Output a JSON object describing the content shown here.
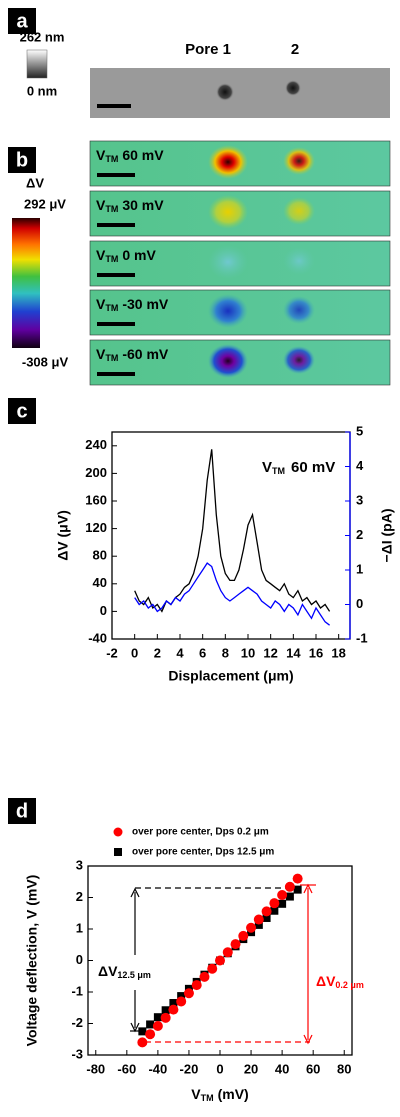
{
  "panels": {
    "a": {
      "label": "a",
      "scale_max": "262 nm",
      "scale_min": "0 nm",
      "pore1": "Pore 1",
      "pore2": "2"
    },
    "b": {
      "label": "b",
      "scale_title": "ΔV",
      "scale_max": "292 μV",
      "scale_min": "-308 μV",
      "maps": [
        {
          "symbol": "V",
          "sub": "TM",
          "text": "60 mV"
        },
        {
          "symbol": "V",
          "sub": "TM",
          "text": "30 mV"
        },
        {
          "symbol": "V",
          "sub": "TM",
          "text": "0 mV"
        },
        {
          "symbol": "V",
          "sub": "TM",
          "text": "-30 mV"
        },
        {
          "symbol": "V",
          "sub": "TM",
          "text": "-60 mV"
        }
      ]
    },
    "c": {
      "label": "c"
    },
    "d": {
      "label": "d"
    }
  },
  "chart_data": [
    {
      "type": "line",
      "annotation": {
        "symbol": "V",
        "sub": "TM",
        "text": "60 mV"
      },
      "xlabel": "Displacement (μm)",
      "ylabel": "ΔV (μV)",
      "y2label": "−ΔI (pA)",
      "x": [
        0,
        0.4,
        0.8,
        1.2,
        1.6,
        2,
        2.4,
        2.8,
        3.2,
        3.6,
        4,
        4.4,
        4.8,
        5.2,
        5.6,
        6,
        6.4,
        6.8,
        7.2,
        7.6,
        8,
        8.4,
        8.8,
        9.2,
        9.6,
        10,
        10.4,
        10.8,
        11.2,
        11.6,
        12,
        12.4,
        12.8,
        13.2,
        13.6,
        14,
        14.4,
        14.8,
        15.2,
        15.6,
        16,
        16.4,
        16.8,
        17.2
      ],
      "series": [
        {
          "color": "#000000",
          "values": [
            30,
            15,
            10,
            20,
            5,
            10,
            0,
            15,
            10,
            20,
            25,
            35,
            40,
            55,
            80,
            120,
            190,
            235,
            140,
            80,
            55,
            45,
            45,
            60,
            90,
            125,
            140,
            100,
            60,
            45,
            40,
            35,
            30,
            40,
            25,
            20,
            30,
            15,
            20,
            10,
            15,
            5,
            10,
            0
          ]
        },
        {
          "color": "#0000ff",
          "axis": "y2",
          "values": [
            0.2,
            0,
            0.1,
            -0.1,
            0,
            -0.2,
            -0.1,
            0.1,
            0,
            0.2,
            0.1,
            0.3,
            0.4,
            0.6,
            0.8,
            1.0,
            1.2,
            1.1,
            0.7,
            0.4,
            0.2,
            0.1,
            0.2,
            0.3,
            0.4,
            0.5,
            0.4,
            0.3,
            0.1,
            0,
            -0.1,
            0.1,
            0,
            -0.2,
            0,
            -0.1,
            -0.3,
            0,
            -0.2,
            -0.4,
            -0.1,
            -0.3,
            -0.5,
            -0.6
          ]
        }
      ],
      "xlim": [
        -2,
        19
      ],
      "xticks": [
        -2,
        0,
        2,
        4,
        6,
        8,
        10,
        12,
        14,
        16,
        18
      ],
      "ylim": [
        -40,
        260
      ],
      "yticks": [
        -40,
        0,
        40,
        80,
        120,
        160,
        200,
        240
      ],
      "y2lim": [
        -1,
        5
      ],
      "y2ticks": [
        -1,
        0,
        1,
        2,
        3,
        4,
        5
      ]
    },
    {
      "type": "scatter",
      "xlabel": {
        "symbol": "V",
        "sub": "TM",
        "unit": "(mV)"
      },
      "ylabel": "Voltage deflection, V (mV)",
      "legend": "top",
      "annotations": [
        {
          "symbol": "ΔV",
          "sub": "12.5 μm",
          "color": "#000000"
        },
        {
          "symbol": "ΔV",
          "sub": "0.2 μm",
          "color": "#ff0000"
        }
      ],
      "x": [
        -50,
        -45,
        -40,
        -35,
        -30,
        -25,
        -20,
        -15,
        -10,
        -5,
        0,
        5,
        10,
        15,
        20,
        25,
        30,
        35,
        40,
        45,
        50
      ],
      "series": [
        {
          "name": "over pore center, Dps 0.2 μm",
          "color": "#ff0000",
          "marker": "circle",
          "values": [
            -2.6,
            -2.34,
            -2.08,
            -1.82,
            -1.56,
            -1.3,
            -1.04,
            -0.78,
            -0.52,
            -0.26,
            0,
            0.26,
            0.52,
            0.78,
            1.04,
            1.3,
            1.56,
            1.82,
            2.08,
            2.34,
            2.6
          ]
        },
        {
          "name": "over pore center, Dps 12.5 μm",
          "color": "#000000",
          "marker": "square",
          "values": [
            -2.25,
            -2.03,
            -1.8,
            -1.58,
            -1.35,
            -1.13,
            -0.9,
            -0.68,
            -0.45,
            -0.23,
            0,
            0.23,
            0.45,
            0.68,
            0.9,
            1.13,
            1.35,
            1.58,
            1.8,
            2.03,
            2.25
          ]
        }
      ],
      "xlim": [
        -85,
        85
      ],
      "xticks": [
        -80,
        -60,
        -40,
        -20,
        0,
        20,
        40,
        60,
        80
      ],
      "ylim": [
        -3,
        3
      ],
      "yticks": [
        -3,
        -2,
        -1,
        0,
        1,
        2,
        3
      ]
    }
  ]
}
